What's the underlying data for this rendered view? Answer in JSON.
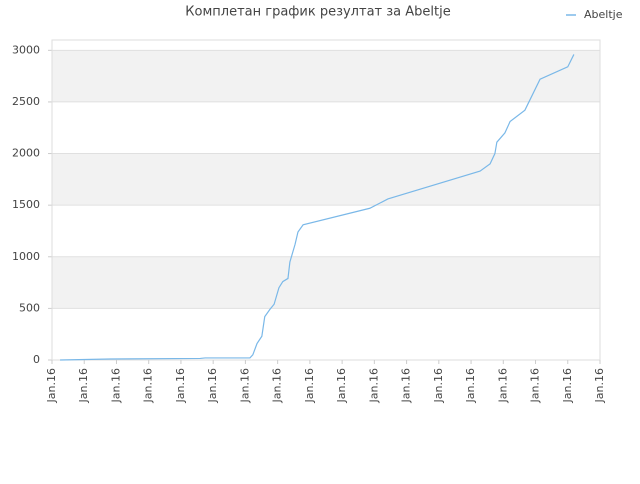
{
  "chart_data": {
    "type": "line",
    "title": "Комплетан график резултат за Abeltje",
    "x": [
      0.25,
      1.8,
      4.6,
      4.75,
      6.14,
      6.23,
      6.36,
      6.51,
      6.6,
      6.76,
      6.89,
      7.04,
      7.16,
      7.32,
      7.38,
      7.54,
      7.63,
      7.79,
      9.86,
      10.42,
      13.28,
      13.59,
      13.74,
      13.8,
      14.05,
      14.21,
      14.67,
      15.14,
      16.0,
      16.19
    ],
    "series": [
      {
        "name": "Abeltje",
        "color": "#7ab8e8",
        "values": [
          0,
          10,
          15,
          20,
          20,
          50,
          160,
          230,
          420,
          490,
          540,
          700,
          760,
          790,
          950,
          1120,
          1240,
          1310,
          1470,
          1560,
          1830,
          1900,
          2000,
          2110,
          2200,
          2310,
          2420,
          2720,
          2840,
          2960
        ]
      }
    ],
    "xlim": [
      0,
      17
    ],
    "xticks": [
      {
        "value": 0,
        "label": "Jan.16"
      },
      {
        "value": 1,
        "label": "Jan.16"
      },
      {
        "value": 2,
        "label": "Jan.16"
      },
      {
        "value": 3,
        "label": "Jan.16"
      },
      {
        "value": 4,
        "label": "Jan.16"
      },
      {
        "value": 5,
        "label": "Jan.16"
      },
      {
        "value": 6,
        "label": "Jan.16"
      },
      {
        "value": 7,
        "label": "Jan.16"
      },
      {
        "value": 8,
        "label": "Jan.16"
      },
      {
        "value": 9,
        "label": "Jan.16"
      },
      {
        "value": 10,
        "label": "Jan.16"
      },
      {
        "value": 11,
        "label": "Jan.16"
      },
      {
        "value": 12,
        "label": "Jan.16"
      },
      {
        "value": 13,
        "label": "Jan.16"
      },
      {
        "value": 14,
        "label": "Jan.16"
      },
      {
        "value": 15,
        "label": "Jan.16"
      },
      {
        "value": 16,
        "label": "Jan.16"
      },
      {
        "value": 17,
        "label": "Jan.16"
      }
    ],
    "ylim": [
      0,
      3100
    ],
    "yticks": [
      0,
      500,
      1000,
      1500,
      2000,
      2500,
      3000
    ],
    "grid": true,
    "legend": "top-right"
  }
}
